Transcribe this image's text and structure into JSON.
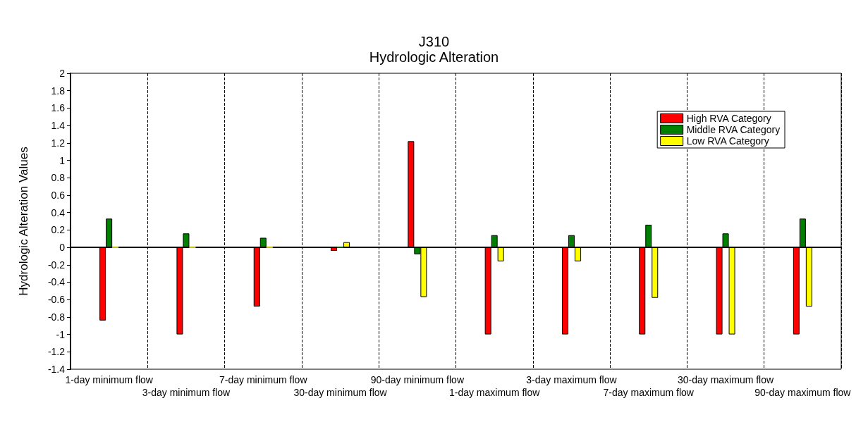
{
  "chart_data": {
    "type": "bar",
    "title": "J310",
    "subtitle": "Hydrologic Alteration",
    "ylabel": "Hydrologic Alteration Values",
    "categories": [
      "1-day minimum flow",
      "3-day minimum flow",
      "7-day minimum flow",
      "30-day minimum flow",
      "90-day minimum flow",
      "1-day maximum flow",
      "3-day maximum flow",
      "7-day maximum flow",
      "30-day maximum flow",
      "90-day maximum flow"
    ],
    "series": [
      {
        "name": "High RVA Category",
        "color": "#ff0000",
        "values": [
          -0.84,
          -1,
          -0.68,
          -0.04,
          1.22,
          -1,
          -1,
          -1,
          -1,
          -1
        ]
      },
      {
        "name": "Middle RVA Category",
        "color": "#008000",
        "values": [
          0.33,
          0.16,
          0.11,
          0,
          -0.08,
          0.14,
          0.14,
          0.26,
          0.16,
          0.33
        ]
      },
      {
        "name": "Low RVA Category",
        "color": "#ffff00",
        "values": [
          0,
          0,
          0,
          0.06,
          -0.57,
          -0.16,
          -0.16,
          -0.58,
          -1,
          -0.68
        ]
      }
    ],
    "ylim": [
      -1.4,
      2
    ],
    "yticks": [
      -1.4,
      -1.2,
      -1,
      -0.8,
      -0.6,
      -0.4,
      -0.2,
      0,
      0.2,
      0.4,
      0.6,
      0.8,
      1,
      1.2,
      1.4,
      1.6,
      1.8,
      2
    ],
    "grid": "x",
    "legend": "top right"
  }
}
